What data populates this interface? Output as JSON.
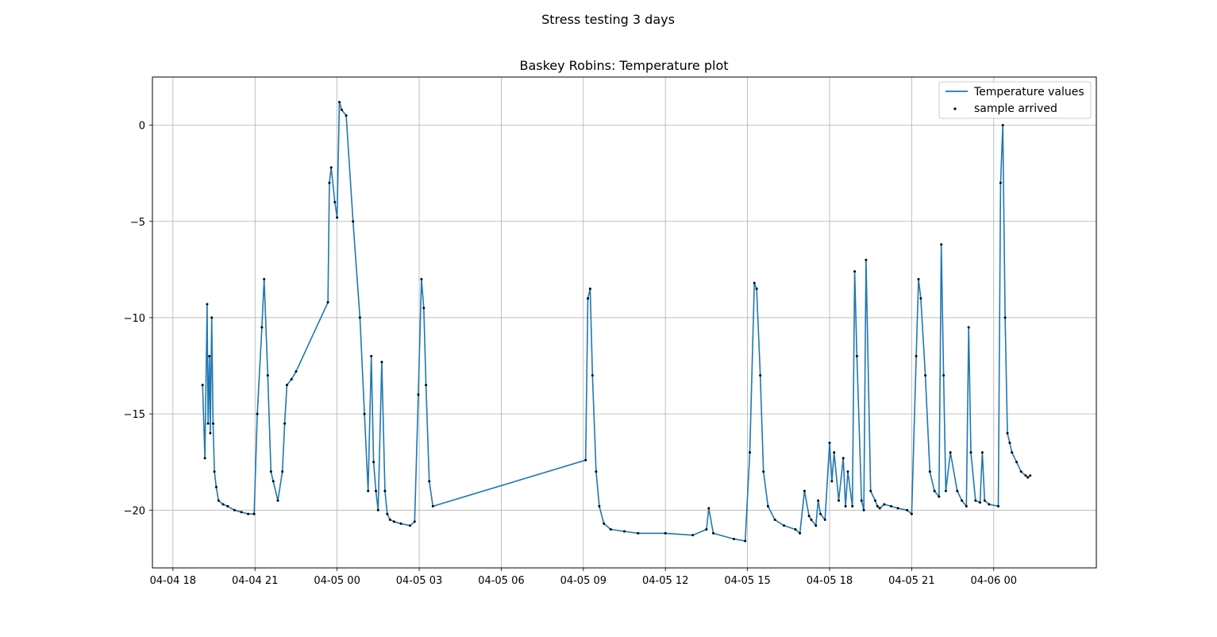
{
  "figure": {
    "suptitle": "Stress testing 3 days"
  },
  "chart_data": {
    "type": "line",
    "title": "Baskey Robins: Temperature plot",
    "xlabel": "",
    "ylabel": "",
    "x_axis_type": "datetime",
    "xlim": [
      "2020-04-04 17:15",
      "2020-04-06 03:45"
    ],
    "ylim": [
      -23.0,
      2.5
    ],
    "x_ticks": [
      "04-04 18",
      "04-04 21",
      "04-05 00",
      "04-05 03",
      "04-05 06",
      "04-05 09",
      "04-05 12",
      "04-05 15",
      "04-05 18",
      "04-05 21",
      "04-06 00"
    ],
    "x_tick_times": [
      "2020-04-04 18:00",
      "2020-04-04 21:00",
      "2020-04-05 00:00",
      "2020-04-05 03:00",
      "2020-04-05 06:00",
      "2020-04-05 09:00",
      "2020-04-05 12:00",
      "2020-04-05 15:00",
      "2020-04-05 18:00",
      "2020-04-05 21:00",
      "2020-04-06 00:00"
    ],
    "y_ticks": [
      0,
      -5,
      -10,
      -15,
      -20
    ],
    "y_tick_labels": [
      "0",
      "−5",
      "−10",
      "−15",
      "−20"
    ],
    "grid": true,
    "legend_placement": "top-right",
    "colors": {
      "line": "#1f77b4",
      "markers": "#000000"
    },
    "series": [
      {
        "name": "Temperature values",
        "kind": "line",
        "x": [
          "2020-04-04 19:05",
          "2020-04-04 19:10",
          "2020-04-04 19:15",
          "2020-04-04 19:17",
          "2020-04-04 19:20",
          "2020-04-04 19:22",
          "2020-04-04 19:25",
          "2020-04-04 19:28",
          "2020-04-04 19:31",
          "2020-04-04 19:35",
          "2020-04-04 19:40",
          "2020-04-04 19:50",
          "2020-04-04 20:00",
          "2020-04-04 20:15",
          "2020-04-04 20:30",
          "2020-04-04 20:45",
          "2020-04-04 20:58",
          "2020-04-04 21:05",
          "2020-04-04 21:15",
          "2020-04-04 21:20",
          "2020-04-04 21:28",
          "2020-04-04 21:35",
          "2020-04-04 21:40",
          "2020-04-04 21:50",
          "2020-04-04 22:00",
          "2020-04-04 22:05",
          "2020-04-04 22:10",
          "2020-04-04 22:20",
          "2020-04-04 22:30",
          "2020-04-04 23:40",
          "2020-04-04 23:43",
          "2020-04-04 23:47",
          "2020-04-04 23:55",
          "2020-04-05 00:00",
          "2020-04-05 00:05",
          "2020-04-05 00:10",
          "2020-04-05 00:20",
          "2020-04-05 00:35",
          "2020-04-05 00:50",
          "2020-04-05 01:00",
          "2020-04-05 01:08",
          "2020-04-05 01:15",
          "2020-04-05 01:20",
          "2020-04-05 01:25",
          "2020-04-05 01:30",
          "2020-04-05 01:38",
          "2020-04-05 01:45",
          "2020-04-05 01:50",
          "2020-04-05 01:56",
          "2020-04-05 02:05",
          "2020-04-05 02:20",
          "2020-04-05 02:40",
          "2020-04-05 02:50",
          "2020-04-05 02:58",
          "2020-04-05 03:05",
          "2020-04-05 03:10",
          "2020-04-05 03:15",
          "2020-04-05 03:22",
          "2020-04-05 03:30",
          "2020-04-05 09:05",
          "2020-04-05 09:10",
          "2020-04-05 09:15",
          "2020-04-05 09:20",
          "2020-04-05 09:28",
          "2020-04-05 09:35",
          "2020-04-05 09:45",
          "2020-04-05 10:00",
          "2020-04-05 10:30",
          "2020-04-05 11:00",
          "2020-04-05 12:00",
          "2020-04-05 13:00",
          "2020-04-05 13:30",
          "2020-04-05 13:35",
          "2020-04-05 13:45",
          "2020-04-05 14:30",
          "2020-04-05 14:55",
          "2020-04-05 15:05",
          "2020-04-05 15:15",
          "2020-04-05 15:20",
          "2020-04-05 15:28",
          "2020-04-05 15:35",
          "2020-04-05 15:45",
          "2020-04-05 16:00",
          "2020-04-05 16:20",
          "2020-04-05 16:45",
          "2020-04-05 16:55",
          "2020-04-05 17:05",
          "2020-04-05 17:15",
          "2020-04-05 17:20",
          "2020-04-05 17:30",
          "2020-04-05 17:35",
          "2020-04-05 17:40",
          "2020-04-05 17:50",
          "2020-04-05 18:00",
          "2020-04-05 18:05",
          "2020-04-05 18:10",
          "2020-04-05 18:20",
          "2020-04-05 18:30",
          "2020-04-05 18:35",
          "2020-04-05 18:40",
          "2020-04-05 18:50",
          "2020-04-05 18:55",
          "2020-04-05 19:00",
          "2020-04-05 19:10",
          "2020-04-05 19:15",
          "2020-04-05 19:20",
          "2020-04-05 19:30",
          "2020-04-05 19:40",
          "2020-04-05 19:45",
          "2020-04-05 19:50",
          "2020-04-05 20:00",
          "2020-04-05 20:15",
          "2020-04-05 20:30",
          "2020-04-05 20:50",
          "2020-04-05 21:00",
          "2020-04-05 21:10",
          "2020-04-05 21:15",
          "2020-04-05 21:20",
          "2020-04-05 21:30",
          "2020-04-05 21:40",
          "2020-04-05 21:50",
          "2020-04-05 22:00",
          "2020-04-05 22:05",
          "2020-04-05 22:10",
          "2020-04-05 22:15",
          "2020-04-05 22:25",
          "2020-04-05 22:40",
          "2020-04-05 22:50",
          "2020-04-05 23:00",
          "2020-04-05 23:05",
          "2020-04-05 23:10",
          "2020-04-05 23:20",
          "2020-04-05 23:30",
          "2020-04-05 23:35",
          "2020-04-05 23:40",
          "2020-04-05 23:50",
          "2020-04-06 00:10",
          "2020-04-06 00:15",
          "2020-04-06 00:20",
          "2020-04-06 00:25",
          "2020-04-06 00:30",
          "2020-04-06 00:35",
          "2020-04-06 00:40",
          "2020-04-06 00:50",
          "2020-04-06 01:00",
          "2020-04-06 01:10",
          "2020-04-06 01:15",
          "2020-04-06 01:20"
        ],
        "y": [
          -13.5,
          -17.3,
          -9.3,
          -15.5,
          -12.0,
          -16.0,
          -10.0,
          -15.5,
          -18.0,
          -18.8,
          -19.5,
          -19.7,
          -19.8,
          -20.0,
          -20.1,
          -20.2,
          -20.2,
          -15.0,
          -10.5,
          -8.0,
          -13.0,
          -18.0,
          -18.5,
          -19.5,
          -18.0,
          -15.5,
          -13.5,
          -13.2,
          -12.8,
          -9.2,
          -3.0,
          -2.2,
          -4.0,
          -4.8,
          1.2,
          0.8,
          0.5,
          -5.0,
          -10.0,
          -15.0,
          -19.0,
          -12.0,
          -17.5,
          -19.0,
          -20.0,
          -12.3,
          -19.0,
          -20.2,
          -20.5,
          -20.6,
          -20.7,
          -20.8,
          -20.6,
          -14.0,
          -8.0,
          -9.5,
          -13.5,
          -18.5,
          -19.8,
          -17.4,
          -9.0,
          -8.5,
          -13.0,
          -18.0,
          -19.8,
          -20.7,
          -21.0,
          -21.1,
          -21.2,
          -21.2,
          -21.3,
          -21.0,
          -19.9,
          -21.2,
          -21.5,
          -21.6,
          -17.0,
          -8.2,
          -8.5,
          -13.0,
          -18.0,
          -19.8,
          -20.5,
          -20.8,
          -21.0,
          -21.2,
          -19.0,
          -20.3,
          -20.5,
          -20.8,
          -19.5,
          -20.2,
          -20.5,
          -16.5,
          -18.5,
          -17.0,
          -19.5,
          -17.3,
          -19.8,
          -18.0,
          -19.8,
          -7.6,
          -12.0,
          -19.5,
          -20.0,
          -7.0,
          -19.0,
          -19.5,
          -19.8,
          -19.9,
          -19.7,
          -19.8,
          -19.9,
          -20.0,
          -20.2,
          -12.0,
          -8.0,
          -9.0,
          -13.0,
          -18.0,
          -19.0,
          -19.3,
          -6.2,
          -13.0,
          -19.0,
          -17.0,
          -19.0,
          -19.5,
          -19.8,
          -10.5,
          -17.0,
          -19.5,
          -19.6,
          -17.0,
          -19.5,
          -19.7,
          -19.8,
          -3.0,
          0.0,
          -10.0,
          -16.0,
          -16.5,
          -17.0,
          -17.5,
          -18.0,
          -18.2,
          -18.3,
          -18.2
        ]
      },
      {
        "name": "sample arrived",
        "kind": "scatter"
      }
    ]
  }
}
